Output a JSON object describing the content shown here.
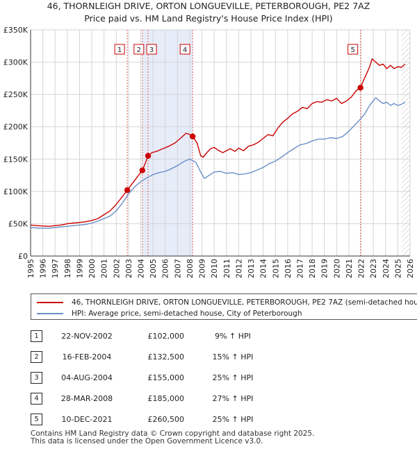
{
  "title": {
    "line1": "46, THORNLEIGH DRIVE, ORTON LONGUEVILLE, PETERBOROUGH, PE2 7AZ",
    "line2": "Price paid vs. HM Land Registry's House Price Index (HPI)"
  },
  "legend": {
    "property": "46, THORNLEIGH DRIVE, ORTON LONGUEVILLE, PETERBOROUGH, PE2 7AZ (semi-detached house)",
    "hpi": "HPI: Average price, semi-detached house, City of Peterborough"
  },
  "sales": [
    {
      "num": "1",
      "date": "22-NOV-2002",
      "price": "£102,000",
      "hpi": "9% ↑ HPI"
    },
    {
      "num": "2",
      "date": "16-FEB-2004",
      "price": "£132,500",
      "hpi": "15% ↑ HPI"
    },
    {
      "num": "3",
      "date": "04-AUG-2004",
      "price": "£155,000",
      "hpi": "25% ↑ HPI"
    },
    {
      "num": "4",
      "date": "28-MAR-2008",
      "price": "£185,000",
      "hpi": "27% ↑ HPI"
    },
    {
      "num": "5",
      "date": "10-DEC-2021",
      "price": "£260,500",
      "hpi": "25% ↑ HPI"
    }
  ],
  "footer": {
    "line1": "Contains HM Land Registry data © Crown copyright and database right 2025.",
    "line2": "This data is licensed under the Open Government Licence v3.0."
  },
  "colors": {
    "property": "#cc0000",
    "hpi": "#6a8fc8",
    "shade": "#e6ecf8",
    "grid": "#d4d4d4",
    "vline": "#e06060",
    "hatch": "#bbbbbb"
  },
  "chart_data": {
    "type": "line",
    "xlim": [
      1995,
      2026
    ],
    "ylim": [
      0,
      350000
    ],
    "x_ticks": [
      1995,
      1996,
      1997,
      1998,
      1999,
      2000,
      2001,
      2002,
      2003,
      2004,
      2005,
      2006,
      2007,
      2008,
      2009,
      2010,
      2011,
      2012,
      2013,
      2014,
      2015,
      2016,
      2017,
      2018,
      2019,
      2020,
      2021,
      2022,
      2023,
      2024,
      2025,
      2026
    ],
    "y_ticks": [
      0,
      50000,
      100000,
      150000,
      200000,
      250000,
      300000,
      350000
    ],
    "y_tick_labels": [
      "£0",
      "£50K",
      "£100K",
      "£150K",
      "£200K",
      "£250K",
      "£300K",
      "£350K"
    ],
    "shaded_periods": [
      [
        2004.13,
        2008.24
      ]
    ],
    "hatched_from": 2025.3,
    "sale_markers": [
      {
        "label": "1",
        "x": 2002.9,
        "y": 102000
      },
      {
        "label": "2",
        "x": 2004.13,
        "y": 132500
      },
      {
        "label": "3",
        "x": 2004.6,
        "y": 155000
      },
      {
        "label": "4",
        "x": 2008.24,
        "y": 185000
      },
      {
        "label": "5",
        "x": 2021.95,
        "y": 260500
      }
    ],
    "series": [
      {
        "name": "46, THORNLEIGH DRIVE, ORTON LONGUEVILLE, PETERBOROUGH, PE2 7AZ (semi-detached house)",
        "x": [
          1995.0,
          1995.5,
          1996.0,
          1996.5,
          1997.0,
          1997.5,
          1998.0,
          1998.5,
          1999.0,
          1999.5,
          2000.0,
          2000.5,
          2001.0,
          2001.5,
          2002.0,
          2002.5,
          2002.9,
          2003.3,
          2003.7,
          2004.13,
          2004.4,
          2004.6,
          2004.9,
          2005.3,
          2005.8,
          2006.3,
          2006.8,
          2007.3,
          2007.7,
          2008.0,
          2008.24,
          2008.6,
          2008.9,
          2009.1,
          2009.4,
          2009.7,
          2010.0,
          2010.3,
          2010.7,
          2011.0,
          2011.3,
          2011.7,
          2012.0,
          2012.4,
          2012.8,
          2013.2,
          2013.6,
          2014.0,
          2014.4,
          2014.8,
          2015.2,
          2015.6,
          2016.0,
          2016.4,
          2016.8,
          2017.2,
          2017.6,
          2018.0,
          2018.4,
          2018.8,
          2019.2,
          2019.6,
          2020.0,
          2020.4,
          2020.8,
          2021.2,
          2021.6,
          2021.95,
          2022.2,
          2022.4,
          2022.7,
          2022.9,
          2023.2,
          2023.5,
          2023.8,
          2024.1,
          2024.4,
          2024.7,
          2025.0,
          2025.3,
          2025.6
        ],
        "values": [
          48000,
          47000,
          46500,
          46000,
          47000,
          48000,
          50000,
          51000,
          52000,
          53000,
          55000,
          58000,
          64000,
          70000,
          80000,
          92000,
          102000,
          112000,
          122000,
          132500,
          145000,
          155000,
          160000,
          162000,
          166000,
          170000,
          175000,
          183000,
          190000,
          188000,
          185000,
          175000,
          155000,
          153000,
          160000,
          166000,
          168000,
          164000,
          160000,
          163000,
          166000,
          162000,
          167000,
          163000,
          170000,
          172000,
          176000,
          182000,
          188000,
          186000,
          198000,
          207000,
          213000,
          220000,
          224000,
          230000,
          228000,
          236000,
          239000,
          238000,
          242000,
          240000,
          244000,
          236000,
          240000,
          246000,
          256000,
          260500,
          272000,
          280000,
          293000,
          305000,
          300000,
          295000,
          297000,
          290000,
          295000,
          290000,
          293000,
          292000,
          297000
        ]
      },
      {
        "name": "HPI: Average price, semi-detached house, City of Peterborough",
        "x": [
          1995.0,
          1995.5,
          1996.0,
          1996.5,
          1997.0,
          1997.5,
          1998.0,
          1998.5,
          1999.0,
          1999.5,
          2000.0,
          2000.5,
          2001.0,
          2001.5,
          2002.0,
          2002.5,
          2003.0,
          2003.5,
          2004.0,
          2004.5,
          2005.0,
          2005.5,
          2006.0,
          2006.5,
          2007.0,
          2007.5,
          2008.0,
          2008.5,
          2008.9,
          2009.2,
          2009.6,
          2010.0,
          2010.5,
          2011.0,
          2011.5,
          2012.0,
          2012.5,
          2013.0,
          2013.5,
          2014.0,
          2014.5,
          2015.0,
          2015.5,
          2016.0,
          2016.5,
          2017.0,
          2017.5,
          2018.0,
          2018.5,
          2019.0,
          2019.5,
          2020.0,
          2020.5,
          2021.0,
          2021.5,
          2022.0,
          2022.3,
          2022.6,
          2022.9,
          2023.2,
          2023.5,
          2023.8,
          2024.1,
          2024.4,
          2024.7,
          2025.0,
          2025.3,
          2025.6
        ],
        "values": [
          44000,
          43500,
          43000,
          43000,
          44000,
          45000,
          46000,
          47000,
          48000,
          49000,
          51000,
          54000,
          58000,
          62000,
          70000,
          82000,
          96000,
          107000,
          115000,
          121000,
          126000,
          129000,
          131000,
          135000,
          140000,
          146000,
          150000,
          145000,
          130000,
          120000,
          125000,
          130000,
          131000,
          128000,
          129000,
          126000,
          127000,
          129000,
          133000,
          137000,
          143000,
          147000,
          153000,
          160000,
          166000,
          172000,
          174000,
          178000,
          181000,
          181000,
          183000,
          182000,
          185000,
          193000,
          203000,
          213000,
          220000,
          230000,
          238000,
          245000,
          240000,
          236000,
          238000,
          233000,
          236000,
          233000,
          235000,
          238000
        ]
      }
    ]
  }
}
